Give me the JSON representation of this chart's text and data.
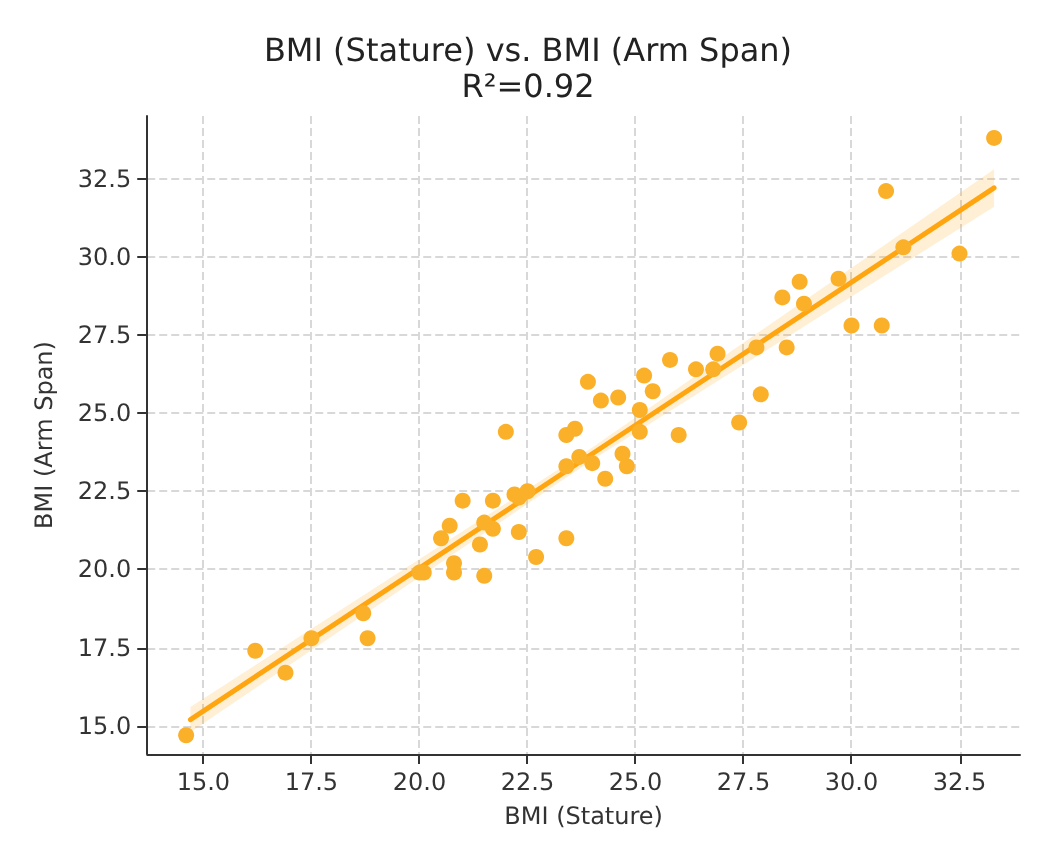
{
  "chart_data": {
    "type": "scatter",
    "title": "BMI (Stature) vs. BMI (Arm Span)",
    "subtitle": "R²=0.92",
    "xlabel": "BMI (Stature)",
    "ylabel": "BMI (Arm Span)",
    "xlim": [
      13.7,
      33.9
    ],
    "ylim": [
      14.1,
      34.5
    ],
    "xticks": [
      {
        "value": 15,
        "label": "15.0"
      },
      17.5,
      {
        "value": 20,
        "label": "20.0"
      },
      22.5,
      {
        "value": 25,
        "label": "25.0"
      },
      27.5,
      {
        "value": 30,
        "label": "30.0"
      },
      32.5
    ],
    "yticks": [
      {
        "value": 15,
        "label": "15.0"
      },
      17.5,
      {
        "value": 20,
        "label": "20.0"
      },
      22.5,
      {
        "value": 25,
        "label": "25.0"
      },
      27.5,
      {
        "value": 30,
        "label": "30.0"
      },
      32.5
    ],
    "grid": true,
    "marker": "circle",
    "series": [
      {
        "type": "scatter",
        "color": "#fbb02a",
        "x": [
          14.6,
          16.2,
          16.9,
          17.5,
          18.7,
          18.8,
          20.0,
          20.1,
          20.5,
          20.7,
          20.8,
          20.8,
          21.0,
          21.4,
          21.5,
          21.5,
          21.7,
          21.7,
          22.0,
          22.2,
          22.3,
          22.5,
          22.3,
          22.7,
          23.4,
          23.4,
          23.6,
          23.4,
          23.7,
          23.9,
          24.0,
          24.2,
          24.3,
          24.6,
          24.7,
          24.8,
          25.1,
          25.1,
          25.2,
          25.4,
          25.8,
          26.0,
          26.4,
          26.8,
          26.9,
          27.4,
          27.8,
          27.9,
          28.4,
          28.5,
          28.8,
          28.9,
          29.7,
          30.0,
          30.7,
          30.8,
          31.2,
          32.5,
          33.3
        ],
        "values": [
          14.7,
          17.4,
          16.7,
          17.8,
          18.6,
          17.8,
          19.9,
          19.9,
          21.0,
          21.4,
          20.2,
          19.9,
          22.2,
          20.8,
          21.5,
          19.8,
          22.2,
          21.3,
          24.4,
          22.4,
          22.3,
          22.5,
          21.2,
          20.4,
          23.3,
          24.3,
          24.5,
          21.0,
          23.6,
          26.0,
          23.4,
          25.4,
          22.9,
          25.5,
          23.7,
          23.3,
          25.1,
          24.4,
          26.2,
          25.7,
          26.7,
          24.3,
          26.4,
          26.4,
          26.9,
          24.7,
          27.1,
          25.6,
          28.7,
          27.1,
          29.2,
          28.5,
          29.3,
          27.8,
          27.8,
          32.1,
          30.3,
          30.1,
          33.8
        ]
      },
      {
        "type": "line",
        "color": "#ffa510",
        "line_style": "solid",
        "marker": "none",
        "x": [
          14.7,
          24.0,
          33.3
        ],
        "values": [
          15.2,
          23.7,
          32.2
        ],
        "lower": [
          14.8,
          23.5,
          31.6
        ],
        "upper": [
          15.6,
          23.9,
          32.8
        ]
      }
    ]
  }
}
